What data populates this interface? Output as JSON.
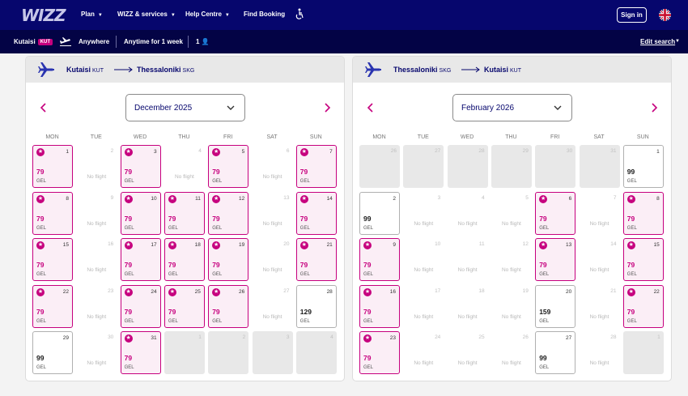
{
  "header": {
    "logo": "WIZZ",
    "nav": [
      "Plan",
      "WIZZ & services",
      "Help Centre",
      "Find Booking"
    ],
    "signin": "Sign in"
  },
  "search": {
    "origin": "Kutaisi",
    "origin_code": "KUT",
    "destination": "Anywhere",
    "dates": "Anytime for 1 week",
    "passengers": "1",
    "edit": "Edit search"
  },
  "weekdays": [
    "MON",
    "TUE",
    "WED",
    "THU",
    "FRI",
    "SAT",
    "SUN"
  ],
  "no_flight": "No flight",
  "panels": [
    {
      "from": "Kutaisi",
      "from_code": "KUT",
      "to": "Thessaloniki",
      "to_code": "SKG",
      "month": "December 2025",
      "days": [
        [
          "1",
          "deal",
          "79",
          "GEL"
        ],
        [
          "2",
          "none"
        ],
        [
          "3",
          "deal",
          "79",
          "GEL"
        ],
        [
          "4",
          "none"
        ],
        [
          "5",
          "deal",
          "79",
          "GEL"
        ],
        [
          "6",
          "none"
        ],
        [
          "7",
          "deal",
          "79",
          "GEL"
        ],
        [
          "8",
          "deal",
          "79",
          "GEL"
        ],
        [
          "9",
          "none"
        ],
        [
          "10",
          "deal",
          "79",
          "GEL"
        ],
        [
          "11",
          "deal",
          "79",
          "GEL"
        ],
        [
          "12",
          "deal",
          "79",
          "GEL"
        ],
        [
          "13",
          "none"
        ],
        [
          "14",
          "deal",
          "79",
          "GEL"
        ],
        [
          "15",
          "deal",
          "79",
          "GEL"
        ],
        [
          "16",
          "none"
        ],
        [
          "17",
          "deal",
          "79",
          "GEL"
        ],
        [
          "18",
          "deal",
          "79",
          "GEL"
        ],
        [
          "19",
          "deal",
          "79",
          "GEL"
        ],
        [
          "20",
          "none"
        ],
        [
          "21",
          "deal",
          "79",
          "GEL"
        ],
        [
          "22",
          "deal",
          "79",
          "GEL"
        ],
        [
          "23",
          "none"
        ],
        [
          "24",
          "deal",
          "79",
          "GEL"
        ],
        [
          "25",
          "deal",
          "79",
          "GEL"
        ],
        [
          "26",
          "deal",
          "79",
          "GEL"
        ],
        [
          "27",
          "none"
        ],
        [
          "28",
          "normal",
          "129",
          "GEL"
        ],
        [
          "29",
          "normal",
          "99",
          "GEL"
        ],
        [
          "30",
          "none"
        ],
        [
          "31",
          "deal",
          "79",
          "GEL"
        ],
        [
          "1",
          "dis"
        ],
        [
          "2",
          "dis"
        ],
        [
          "3",
          "dis"
        ],
        [
          "4",
          "dis"
        ]
      ]
    },
    {
      "from": "Thessaloniki",
      "from_code": "SKG",
      "to": "Kutaisi",
      "to_code": "KUT",
      "month": "February 2026",
      "days": [
        [
          "26",
          "dis"
        ],
        [
          "27",
          "dis"
        ],
        [
          "28",
          "dis"
        ],
        [
          "29",
          "dis"
        ],
        [
          "30",
          "dis"
        ],
        [
          "31",
          "dis"
        ],
        [
          "1",
          "normal",
          "99",
          "GEL"
        ],
        [
          "2",
          "normal",
          "99",
          "GEL"
        ],
        [
          "3",
          "none"
        ],
        [
          "4",
          "none"
        ],
        [
          "5",
          "none"
        ],
        [
          "6",
          "deal",
          "79",
          "GEL"
        ],
        [
          "7",
          "none"
        ],
        [
          "8",
          "deal",
          "79",
          "GEL"
        ],
        [
          "9",
          "deal",
          "79",
          "GEL"
        ],
        [
          "10",
          "none"
        ],
        [
          "11",
          "none"
        ],
        [
          "12",
          "none"
        ],
        [
          "13",
          "deal",
          "79",
          "GEL"
        ],
        [
          "14",
          "none"
        ],
        [
          "15",
          "deal",
          "79",
          "GEL"
        ],
        [
          "16",
          "deal",
          "79",
          "GEL"
        ],
        [
          "17",
          "none"
        ],
        [
          "18",
          "none"
        ],
        [
          "19",
          "none"
        ],
        [
          "20",
          "normal",
          "159",
          "GEL"
        ],
        [
          "21",
          "none"
        ],
        [
          "22",
          "deal",
          "79",
          "GEL"
        ],
        [
          "23",
          "deal",
          "79",
          "GEL"
        ],
        [
          "24",
          "none"
        ],
        [
          "25",
          "none"
        ],
        [
          "26",
          "none"
        ],
        [
          "27",
          "normal",
          "99",
          "GEL"
        ],
        [
          "28",
          "none"
        ],
        [
          "1",
          "dis"
        ]
      ]
    }
  ]
}
